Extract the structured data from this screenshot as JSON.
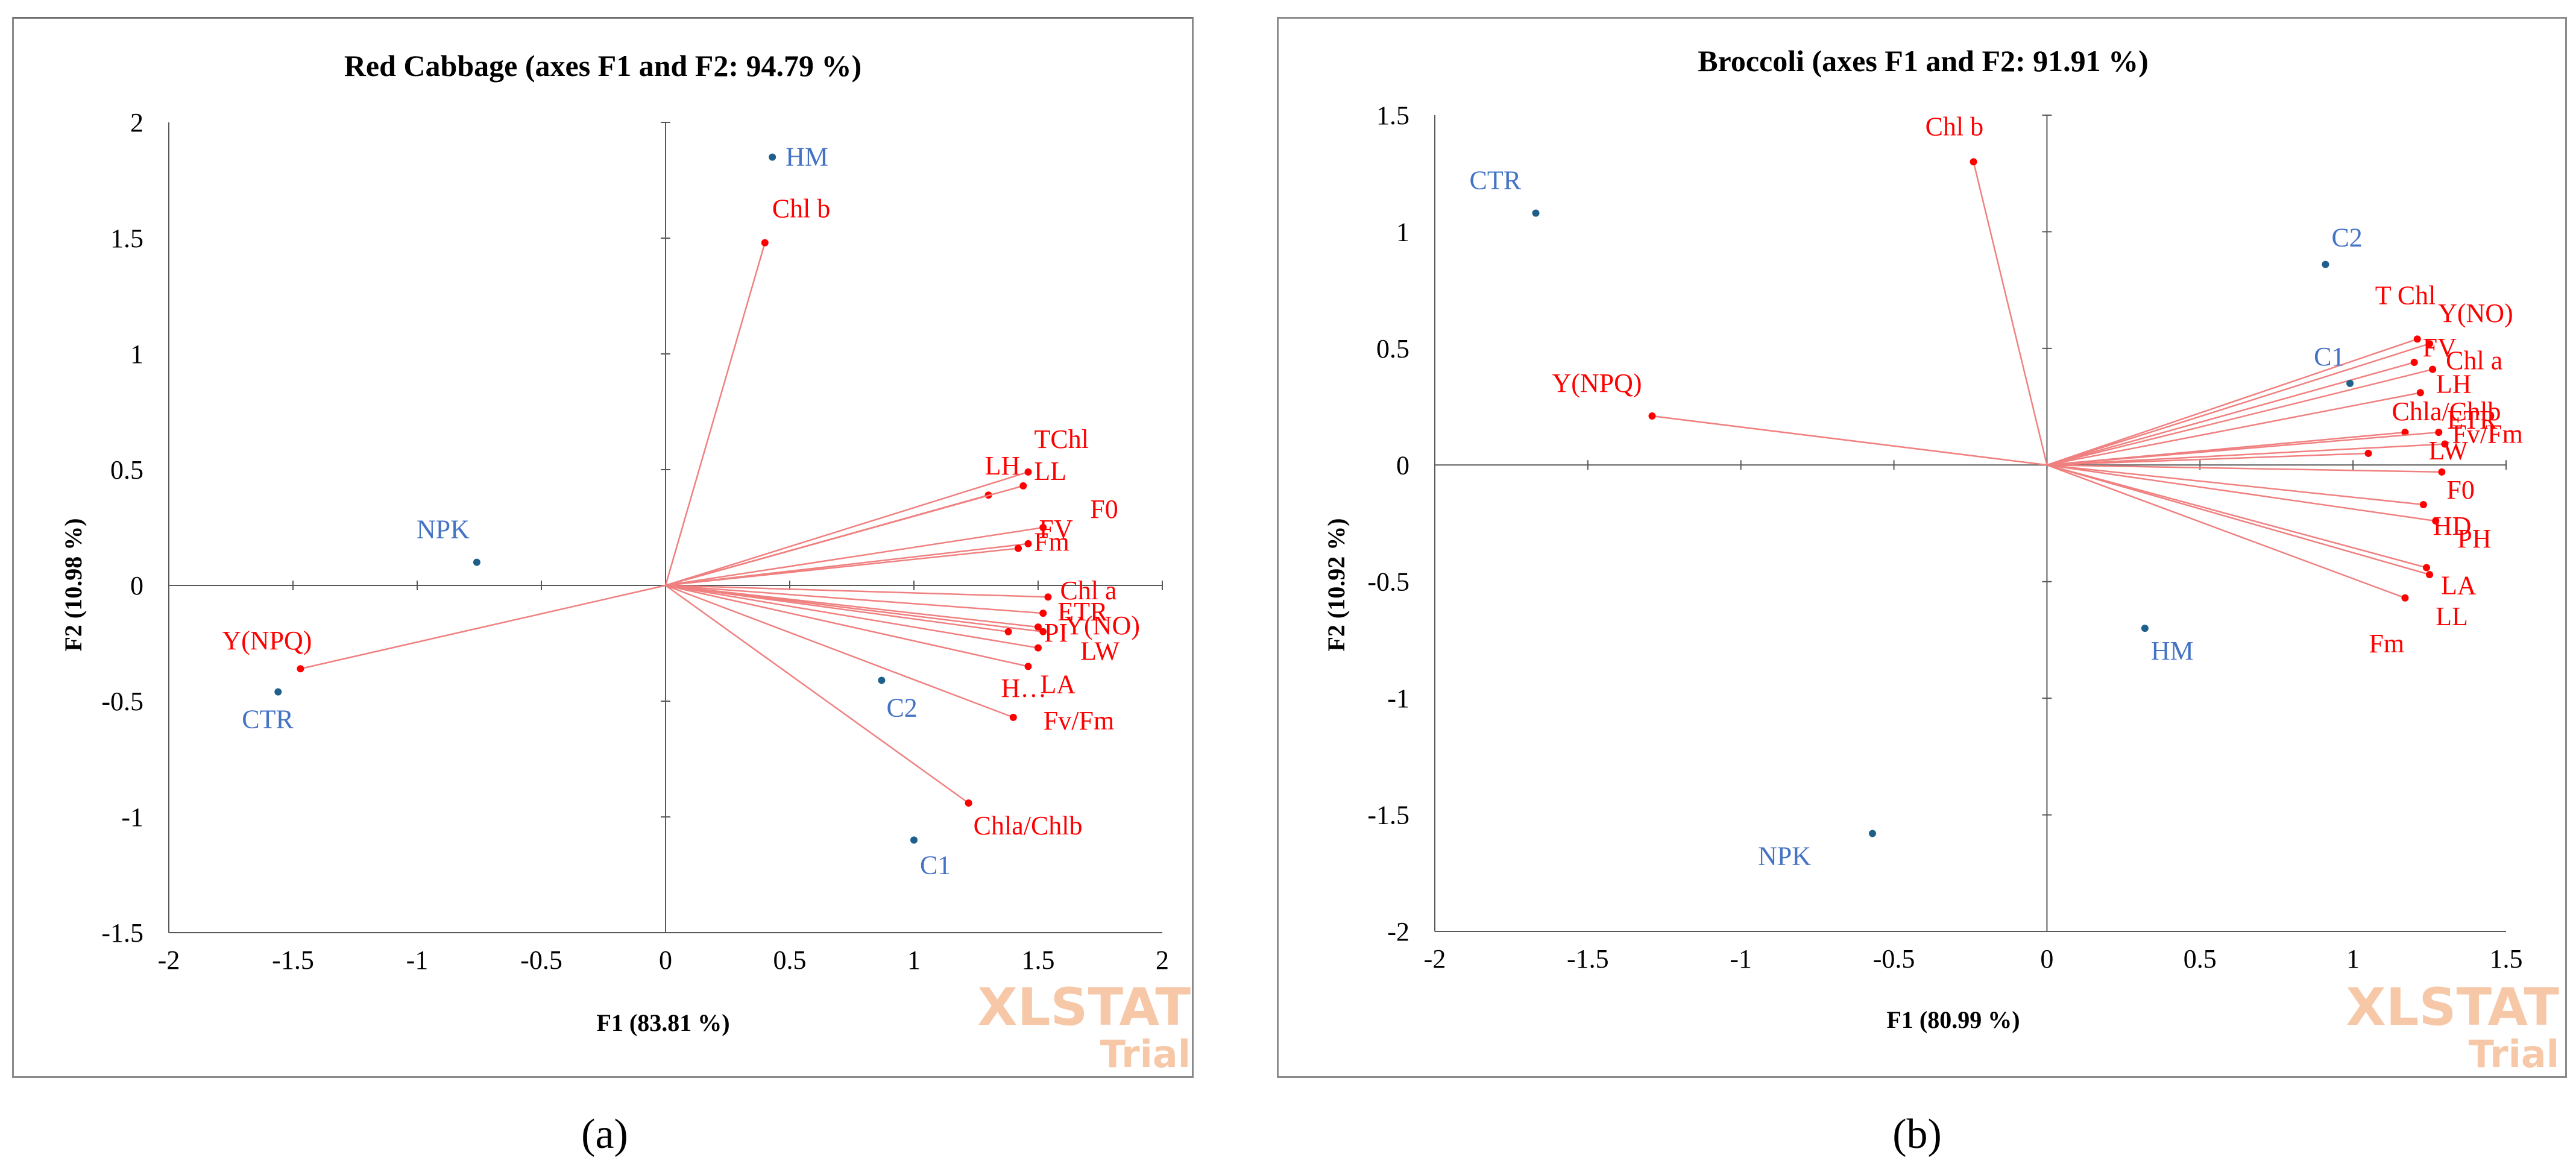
{
  "chart_data": [
    {
      "type": "scatter",
      "title": "Red Cabbage (axes F1 and F2: 94.79 %)",
      "xlabel": "F1 (83.81 %)",
      "ylabel": "F2 (10.98 %)",
      "xlim": [
        -2,
        2
      ],
      "ylim": [
        -1.5,
        2
      ],
      "xticks": [
        "-2",
        "-1.5",
        "-1",
        "-0.5",
        "0",
        "0.5",
        "1",
        "1.5",
        "2"
      ],
      "yticks": [
        "2",
        "1.5",
        "1",
        "0.5",
        "0",
        "-0.5",
        "-1",
        "-1.5"
      ],
      "grid": false,
      "variables": [
        {
          "label": "Chl b",
          "x": 0.4,
          "y": 1.48
        },
        {
          "label": "LH",
          "x": 1.3,
          "y": 0.39
        },
        {
          "label": "TChl",
          "x": 1.46,
          "y": 0.49
        },
        {
          "label": "LL",
          "x": 1.44,
          "y": 0.43
        },
        {
          "label": "F0",
          "x": 1.52,
          "y": 0.25
        },
        {
          "label": "FV",
          "x": 1.46,
          "y": 0.18
        },
        {
          "label": "Fm",
          "x": 1.42,
          "y": 0.16
        },
        {
          "label": "Chl a",
          "x": 1.54,
          "y": -0.05
        },
        {
          "label": "ETR",
          "x": 1.52,
          "y": -0.12
        },
        {
          "label": "PI",
          "x": 1.5,
          "y": -0.18
        },
        {
          "label": "Y(NO)",
          "x": 1.52,
          "y": -0.2
        },
        {
          "label": "LW",
          "x": 1.5,
          "y": -0.27
        },
        {
          "label": "LA",
          "x": 1.46,
          "y": -0.35
        },
        {
          "label": "Fv/Fm",
          "x": 1.4,
          "y": -0.57
        },
        {
          "label": "H…",
          "x": 1.38,
          "y": -0.2
        },
        {
          "label": "Chla/Chlb",
          "x": 1.22,
          "y": -0.94
        },
        {
          "label": "Y(NPQ)",
          "x": -1.47,
          "y": -0.36
        }
      ],
      "observations": [
        {
          "label": "HM",
          "x": 0.43,
          "y": 1.85
        },
        {
          "label": "NPK",
          "x": -0.76,
          "y": 0.1
        },
        {
          "label": "CTR",
          "x": -1.56,
          "y": -0.46
        },
        {
          "label": "C2",
          "x": 0.87,
          "y": -0.41
        },
        {
          "label": "C1",
          "x": 1.0,
          "y": -1.1
        }
      ],
      "panel_label": "(a)"
    },
    {
      "type": "scatter",
      "title": "Broccoli (axes F1 and F2: 91.91 %)",
      "xlabel": "F1 (80.99 %)",
      "ylabel": "F2 (10.92 %)",
      "xlim": [
        -2,
        1.5
      ],
      "ylim": [
        -2,
        1.5
      ],
      "xticks": [
        "-2",
        "-1.5",
        "-1",
        "-0.5",
        "0",
        "0.5",
        "1",
        "1.5"
      ],
      "yticks": [
        "1.5",
        "1",
        "0.5",
        "0",
        "-0.5",
        "-1",
        "-1.5",
        "-2"
      ],
      "grid": false,
      "variables": [
        {
          "label": "Chl b",
          "x": -0.24,
          "y": 1.3
        },
        {
          "label": "Y(NPQ)",
          "x": -1.29,
          "y": 0.21
        },
        {
          "label": "T Chl",
          "x": 1.21,
          "y": 0.54
        },
        {
          "label": "Y(NO)",
          "x": 1.25,
          "y": 0.52
        },
        {
          "label": "FV",
          "x": 1.2,
          "y": 0.44
        },
        {
          "label": "Chl a",
          "x": 1.26,
          "y": 0.41
        },
        {
          "label": "LH",
          "x": 1.22,
          "y": 0.31
        },
        {
          "label": "Chla/Chlb",
          "x": 1.17,
          "y": 0.14
        },
        {
          "label": "ETR",
          "x": 1.28,
          "y": 0.14
        },
        {
          "label": "Fv/Fm",
          "x": 1.3,
          "y": 0.09
        },
        {
          "label": "LW",
          "x": 1.05,
          "y": 0.05
        },
        {
          "label": "F0",
          "x": 1.29,
          "y": -0.03
        },
        {
          "label": "HD",
          "x": 1.23,
          "y": -0.17
        },
        {
          "label": "PH",
          "x": 1.27,
          "y": -0.24
        },
        {
          "label": "LA",
          "x": 1.24,
          "y": -0.44
        },
        {
          "label": "LL",
          "x": 1.25,
          "y": -0.47
        },
        {
          "label": "Fm",
          "x": 1.17,
          "y": -0.57
        }
      ],
      "observations": [
        {
          "label": "CTR",
          "x": -1.67,
          "y": 1.08
        },
        {
          "label": "C2",
          "x": 0.91,
          "y": 0.86
        },
        {
          "label": "C1",
          "x": 0.99,
          "y": 0.35
        },
        {
          "label": "HM",
          "x": 0.32,
          "y": -0.7
        },
        {
          "label": "NPK",
          "x": -0.57,
          "y": -1.58
        }
      ],
      "panel_label": "(b)"
    }
  ],
  "watermark": {
    "line1": "XLSTAT",
    "line2": "Trial"
  },
  "colors": {
    "variables": "#ff0000",
    "variable_lines": "#f08080",
    "observation_points": "#1f5f8b",
    "observation_labels": "#4472c4",
    "axes": "#595959",
    "watermark": "#f6c8a8"
  }
}
